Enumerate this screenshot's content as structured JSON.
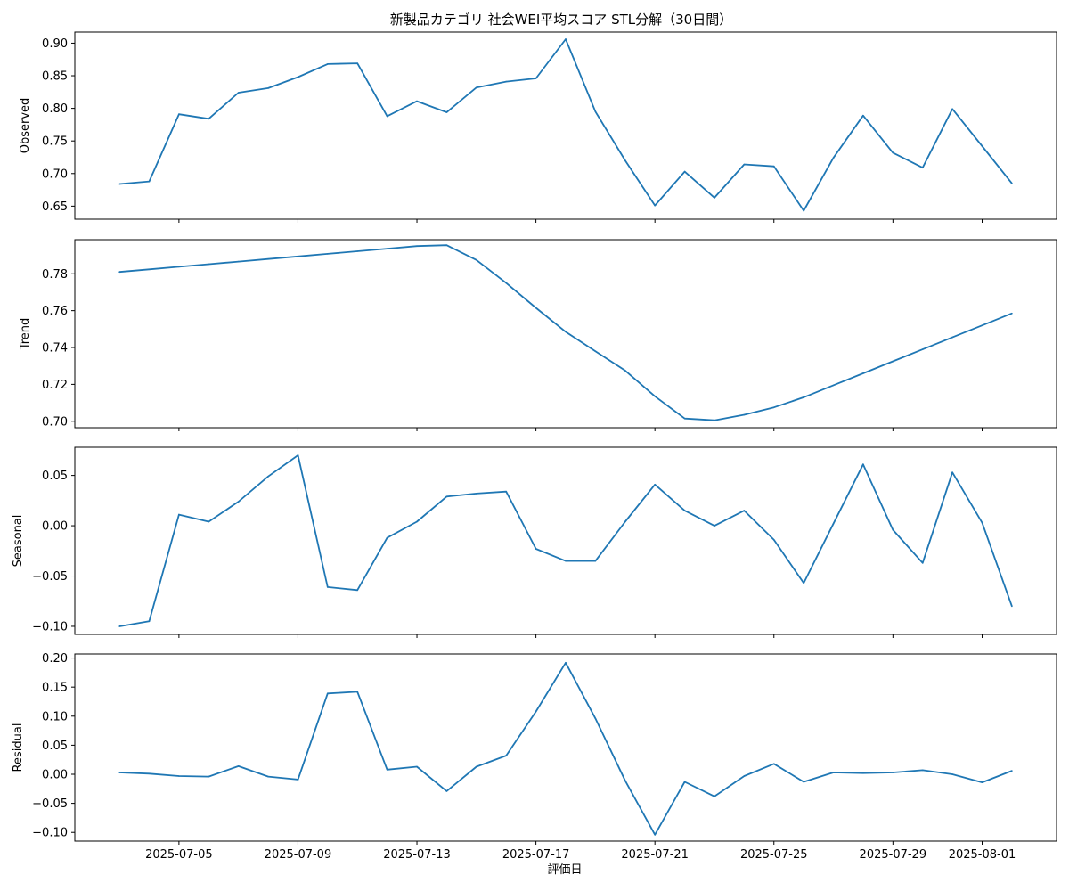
{
  "chart_data": {
    "type": "line",
    "title": "新製品カテゴリ 社会WEI平均スコア STL分解（30日間）",
    "xlabel": "評価日",
    "line_color": "#1f77b4",
    "x": [
      "2025-07-03",
      "2025-07-04",
      "2025-07-05",
      "2025-07-06",
      "2025-07-07",
      "2025-07-08",
      "2025-07-09",
      "2025-07-10",
      "2025-07-11",
      "2025-07-12",
      "2025-07-13",
      "2025-07-14",
      "2025-07-15",
      "2025-07-16",
      "2025-07-17",
      "2025-07-18",
      "2025-07-19",
      "2025-07-20",
      "2025-07-21",
      "2025-07-22",
      "2025-07-23",
      "2025-07-24",
      "2025-07-25",
      "2025-07-26",
      "2025-07-27",
      "2025-07-28",
      "2025-07-29",
      "2025-07-30",
      "2025-07-31",
      "2025-08-01",
      "2025-08-02"
    ],
    "x_ticks": [
      "2025-07-05",
      "2025-07-09",
      "2025-07-13",
      "2025-07-17",
      "2025-07-21",
      "2025-07-25",
      "2025-07-29",
      "2025-08-01"
    ],
    "panels": [
      {
        "ylabel": "Observed",
        "ylim": [
          0.63,
          0.917
        ],
        "yticks": [
          "0.65",
          "0.70",
          "0.75",
          "0.80",
          "0.85",
          "0.90"
        ],
        "values": [
          0.684,
          0.688,
          0.791,
          0.784,
          0.824,
          0.831,
          0.848,
          0.868,
          0.869,
          0.788,
          0.811,
          0.794,
          0.832,
          0.841,
          0.846,
          0.906,
          0.795,
          0.72,
          0.651,
          0.703,
          0.663,
          0.714,
          0.711,
          0.643,
          0.724,
          0.789,
          0.732,
          0.709,
          0.799,
          0.742,
          0.685
        ]
      },
      {
        "ylabel": "Trend",
        "ylim": [
          0.6965,
          0.7985
        ],
        "yticks": [
          "0.70",
          "0.72",
          "0.74",
          "0.76",
          "0.78"
        ],
        "values": [
          0.781,
          0.7824,
          0.7838,
          0.7852,
          0.7866,
          0.788,
          0.7894,
          0.7908,
          0.7922,
          0.7936,
          0.795,
          0.7955,
          0.7875,
          0.775,
          0.7615,
          0.7485,
          0.738,
          0.7275,
          0.7135,
          0.7015,
          0.7005,
          0.7035,
          0.7075,
          0.713,
          0.7195,
          0.726,
          0.7325,
          0.739,
          0.7455,
          0.752,
          0.7585
        ]
      },
      {
        "ylabel": "Seasonal",
        "ylim": [
          -0.108,
          0.078
        ],
        "yticks": [
          "−0.10",
          "−0.05",
          "0.00",
          "0.05"
        ],
        "values": [
          -0.1,
          -0.095,
          0.011,
          0.004,
          0.024,
          0.049,
          0.07,
          -0.061,
          -0.064,
          -0.012,
          0.004,
          0.029,
          0.032,
          0.034,
          -0.023,
          -0.035,
          -0.035,
          0.004,
          0.041,
          0.015,
          0.0,
          0.015,
          -0.014,
          -0.057,
          0.002,
          0.061,
          -0.004,
          -0.037,
          0.053,
          0.003,
          -0.08
        ]
      },
      {
        "ylabel": "Residual",
        "ylim": [
          -0.115,
          0.207
        ],
        "yticks": [
          "−0.10",
          "−0.05",
          "0.00",
          "0.05",
          "0.10",
          "0.15",
          "0.20"
        ],
        "values": [
          0.003,
          0.001,
          -0.003,
          -0.004,
          0.014,
          -0.004,
          -0.009,
          0.139,
          0.142,
          0.008,
          0.013,
          -0.029,
          0.013,
          0.032,
          0.108,
          0.192,
          0.096,
          -0.011,
          -0.104,
          -0.013,
          -0.038,
          -0.003,
          0.018,
          -0.013,
          0.003,
          0.002,
          0.003,
          0.007,
          0.0,
          -0.014,
          0.006
        ]
      }
    ]
  }
}
